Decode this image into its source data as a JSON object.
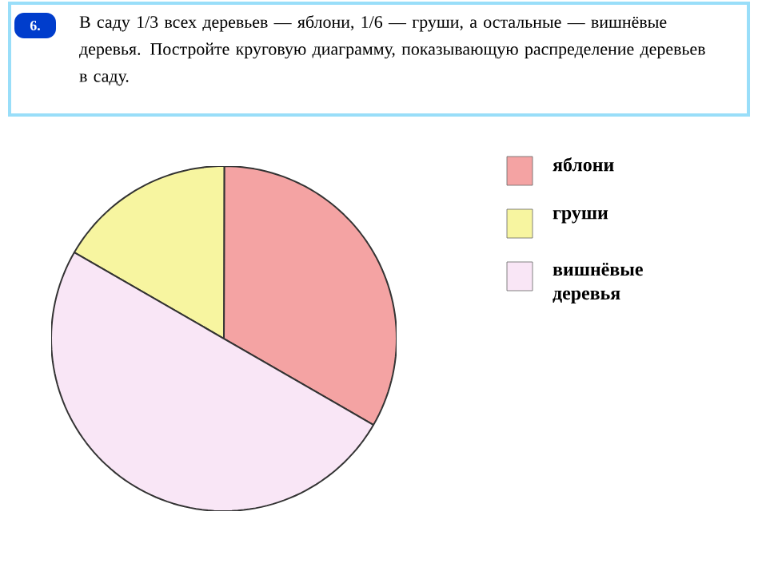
{
  "chart_data": {
    "type": "pie",
    "title": "В саду 1/3 всех деревьев — яблони, 1/6 — груши, а остальные — вишнёвые деревья. Постройте круговую диаграмму, показывающую распределение деревьев в саду.",
    "annotations": [
      "6."
    ],
    "categories": [
      "яблони",
      "груши",
      "вишнёвые деревья"
    ],
    "values": [
      33.3,
      16.7,
      50
    ],
    "colors": [
      "#f4a3a3",
      "#f7f5a0",
      "#f9e6f6"
    ],
    "legend": "right"
  }
}
